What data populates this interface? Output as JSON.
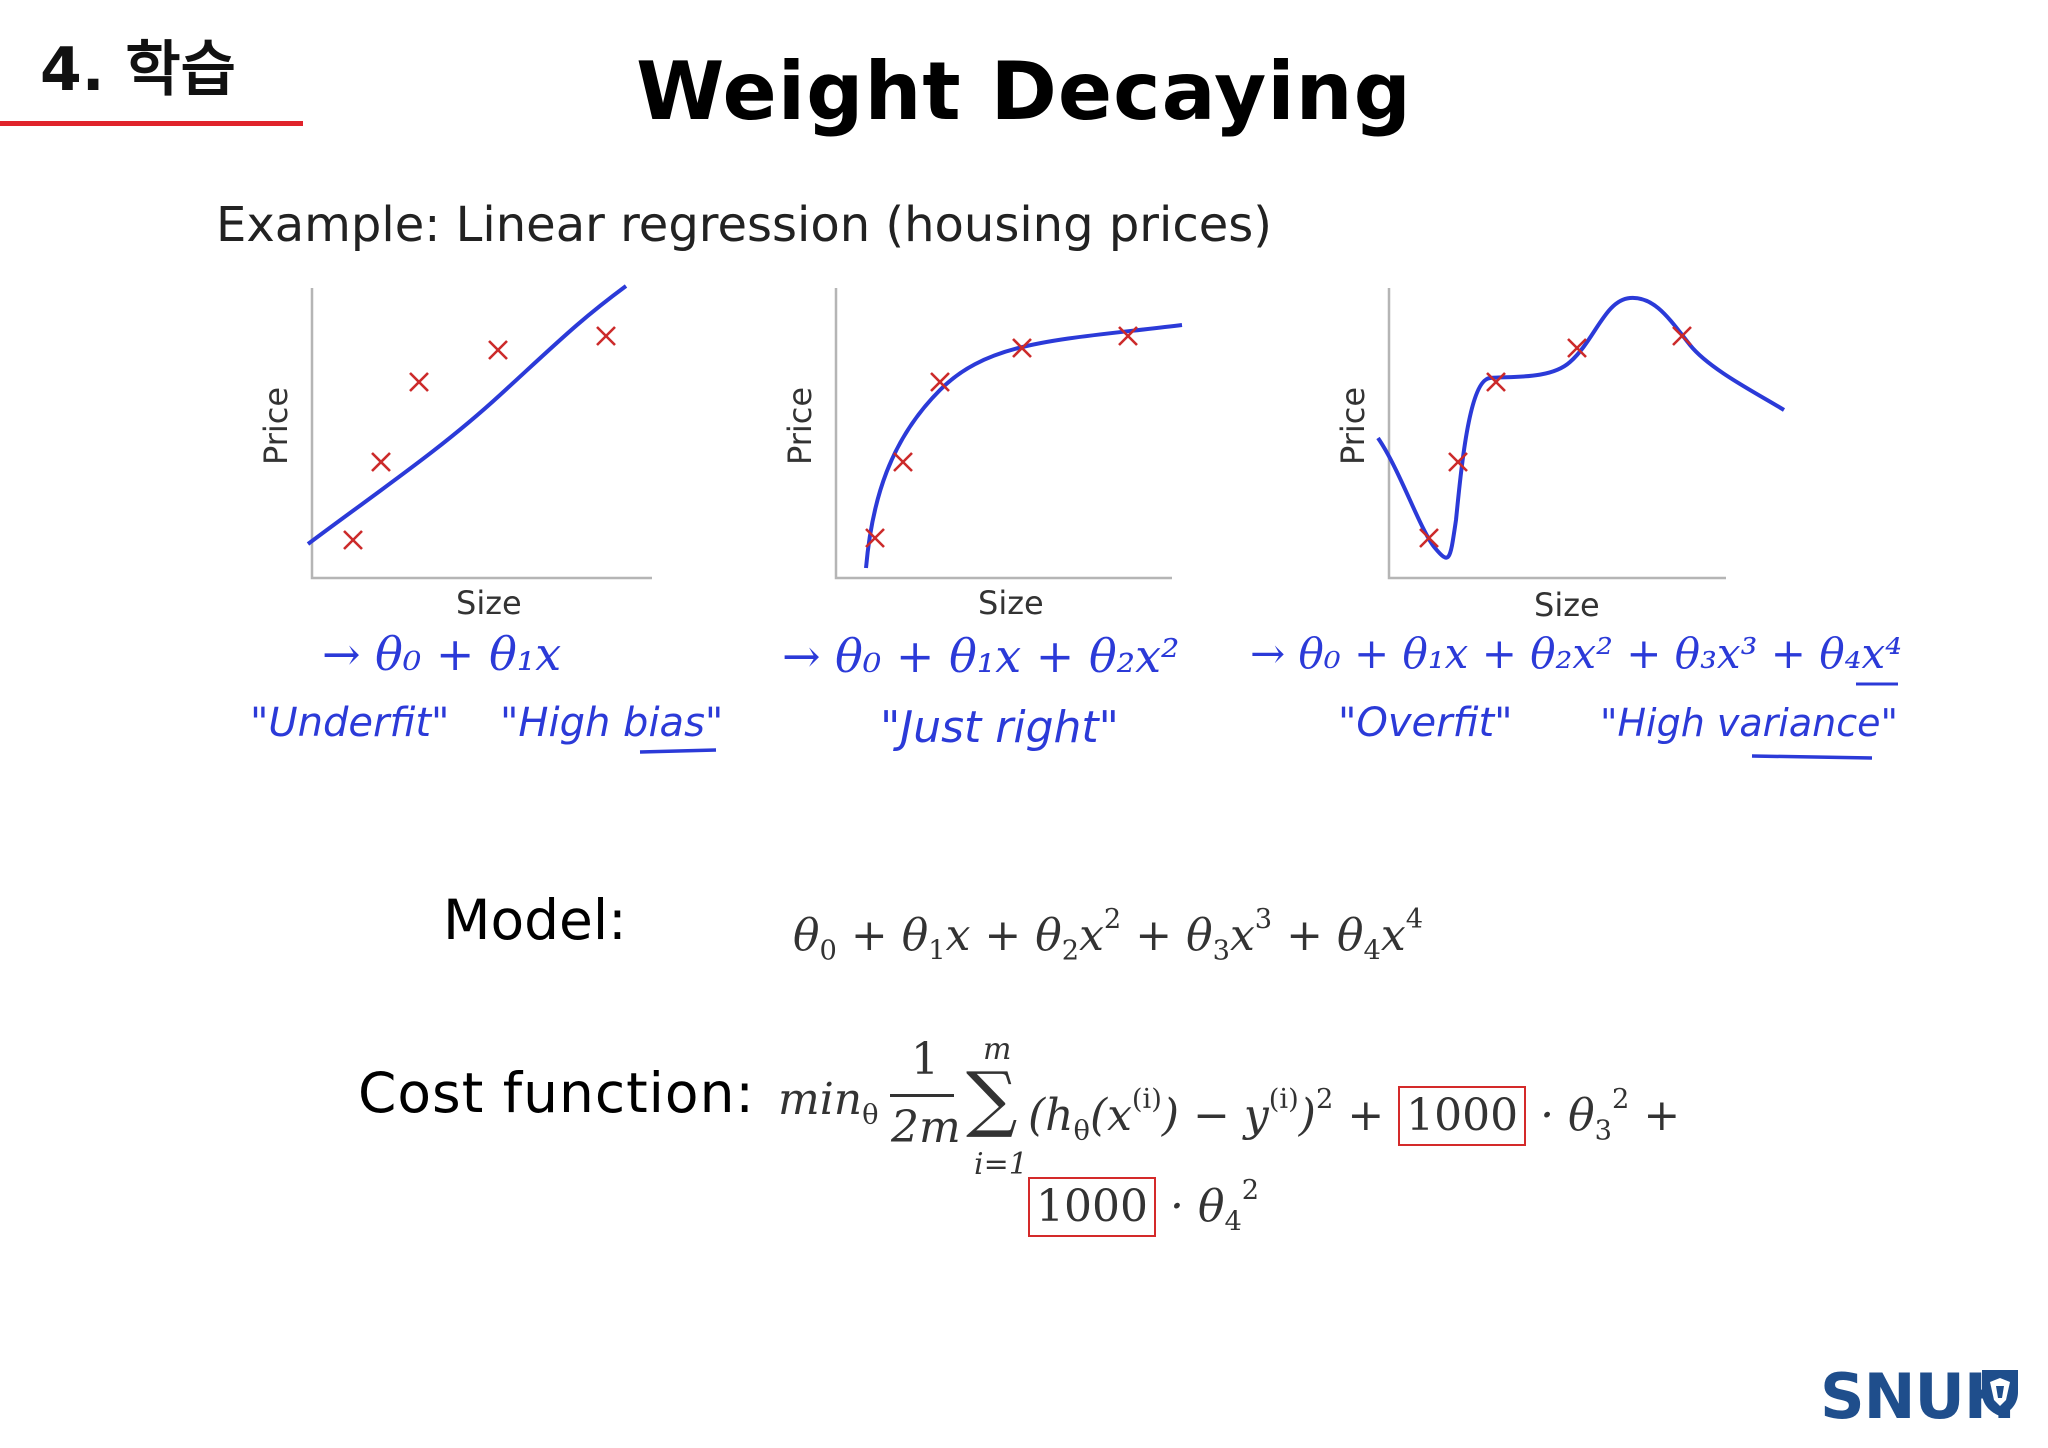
{
  "section_label": "4. 학습",
  "title": "Weight Decaying",
  "example_caption": "Example: Linear regression (housing prices)",
  "plots": [
    {
      "fit": "underfit",
      "xlabel": "Size",
      "ylabel": "Price",
      "hypothesis": "→ θ₀ + θ₁x",
      "annotation_left": "\"Underfit\"",
      "annotation_right": "\"High bias\""
    },
    {
      "fit": "just right",
      "xlabel": "Size",
      "ylabel": "Price",
      "hypothesis": "→ θ₀ + θ₁x + θ₂x²",
      "annotation_left": "\"Just right\"",
      "annotation_right": ""
    },
    {
      "fit": "overfit",
      "xlabel": "Size",
      "ylabel": "Price",
      "hypothesis": "→ θ₀ + θ₁x + θ₂x² + θ₃x³ + θ₄x⁴",
      "annotation_left": "\"Overfit\"",
      "annotation_right": "\"High variance\""
    }
  ],
  "colors": {
    "curve": "#2b3ad8",
    "points": "#cc2a2a",
    "handwriting": "#2b3ad8",
    "underline": "#e0232b",
    "logo": "#1f4e8c"
  },
  "model": {
    "label": "Model:",
    "terms": [
      "θ",
      "0",
      " + θ",
      "1",
      "x + θ",
      "2",
      "x",
      "2",
      " + θ",
      "3",
      "x",
      "3",
      " + θ",
      "4",
      "x",
      "4"
    ]
  },
  "cost": {
    "label": "Cost function:",
    "min": "min",
    "min_sub": "θ",
    "numerator": "1",
    "denominator": "2m",
    "sigma": "∑",
    "sum_top": "m",
    "sum_bottom": "i=1",
    "body_pre": "(h",
    "body_sub": "θ",
    "body_x": "(x",
    "body_x_sup": "(i)",
    "body_mid": ") − y",
    "body_y_sup": "(i)",
    "body_close": ")",
    "body_sq": "2",
    "plus": " + ",
    "penalty": "1000",
    "dot": " · θ",
    "theta3_sub": "3",
    "theta4_sub": "4",
    "sq": "2"
  },
  "logo": {
    "text": "SNUH",
    "icon": "shield-logo-icon"
  }
}
